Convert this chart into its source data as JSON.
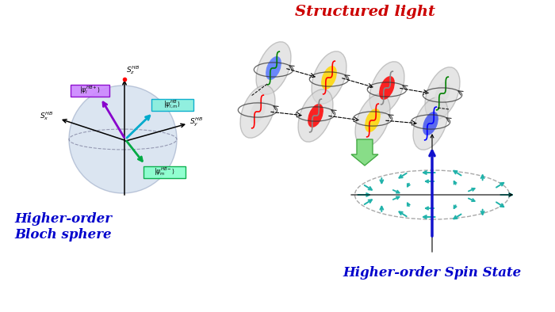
{
  "structured_light_label": "Structured light",
  "bloch_label": "Higher-order\nBloch sphere",
  "spin_label": "Higher-order Spin State",
  "background": "#ffffff",
  "teal": "#20B2AA",
  "blue_label": "#0000cc",
  "red_label": "#cc0000",
  "green_arrow": "#88dd88",
  "green_arrow_edge": "#44aa44",
  "sphere_face": "#b8cce4",
  "purple_vec": "#8800cc",
  "purple_box": "#cc88ff",
  "cyan_vec": "#00aacc",
  "cyan_box": "#88eedd",
  "green_vec": "#00aa44",
  "green_box": "#88ffcc"
}
